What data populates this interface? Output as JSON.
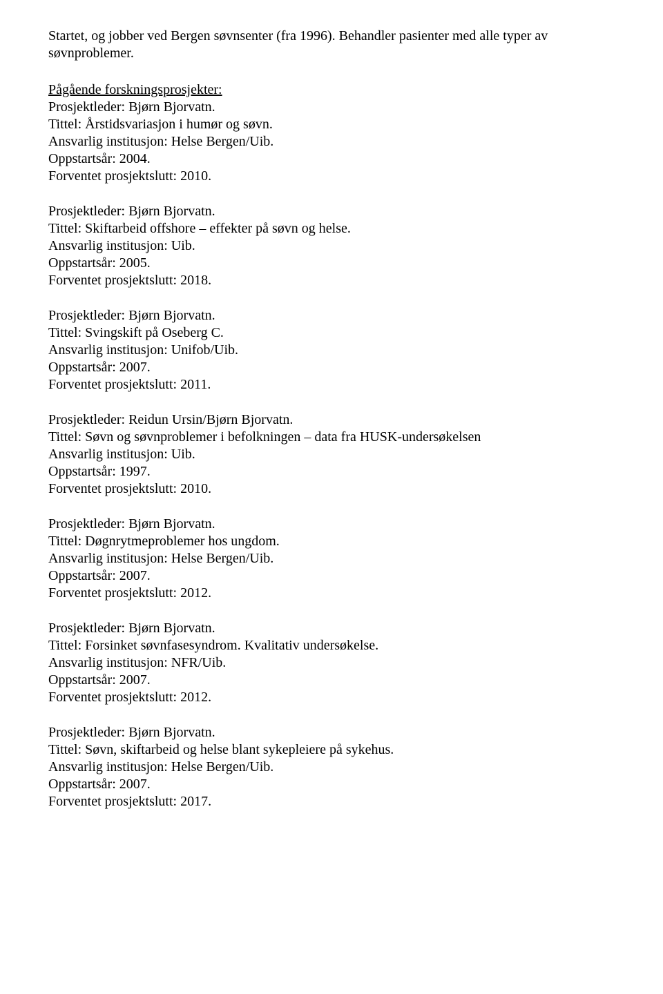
{
  "intro": "Startet, og jobber ved Bergen søvnsenter (fra 1996). Behandler pasienter med alle typer av søvnproblemer.",
  "heading": "Pågående forskningsprosjekter:",
  "projects": [
    {
      "leader": "Prosjektleder: Bjørn Bjorvatn.",
      "title": "Tittel: Årstidsvariasjon i humør og søvn.",
      "institution": "Ansvarlig institusjon: Helse Bergen/Uib.",
      "start": "Oppstartsår: 2004.",
      "end": "Forventet prosjektslutt: 2010."
    },
    {
      "leader": "Prosjektleder: Bjørn Bjorvatn.",
      "title": "Tittel: Skiftarbeid offshore – effekter på søvn og helse.",
      "institution": "Ansvarlig institusjon: Uib.",
      "start": "Oppstartsår: 2005.",
      "end": "Forventet prosjektslutt: 2018."
    },
    {
      "leader": "Prosjektleder: Bjørn Bjorvatn.",
      "title": "Tittel: Svingskift på Oseberg C.",
      "institution": "Ansvarlig institusjon: Unifob/Uib.",
      "start": "Oppstartsår: 2007.",
      "end": "Forventet prosjektslutt: 2011."
    },
    {
      "leader": "Prosjektleder: Reidun Ursin/Bjørn Bjorvatn.",
      "title": "Tittel: Søvn og søvnproblemer i befolkningen – data fra HUSK-undersøkelsen",
      "institution": "Ansvarlig institusjon: Uib.",
      "start": "Oppstartsår: 1997.",
      "end": "Forventet prosjektslutt: 2010."
    },
    {
      "leader": "Prosjektleder: Bjørn Bjorvatn.",
      "title": "Tittel: Døgnrytmeproblemer hos ungdom.",
      "institution": "Ansvarlig institusjon: Helse Bergen/Uib.",
      "start": "Oppstartsår: 2007.",
      "end": "Forventet prosjektslutt: 2012."
    },
    {
      "leader": "Prosjektleder: Bjørn Bjorvatn.",
      "title": "Tittel: Forsinket søvnfasesyndrom. Kvalitativ undersøkelse.",
      "institution": "Ansvarlig institusjon: NFR/Uib.",
      "start": "Oppstartsår: 2007.",
      "end": "Forventet prosjektslutt: 2012."
    },
    {
      "leader": "Prosjektleder: Bjørn Bjorvatn.",
      "title": "Tittel: Søvn, skiftarbeid og helse blant sykepleiere på sykehus.",
      "institution": "Ansvarlig institusjon: Helse Bergen/Uib.",
      "start": "Oppstartsår: 2007.",
      "end": "Forventet prosjektslutt: 2017."
    }
  ]
}
